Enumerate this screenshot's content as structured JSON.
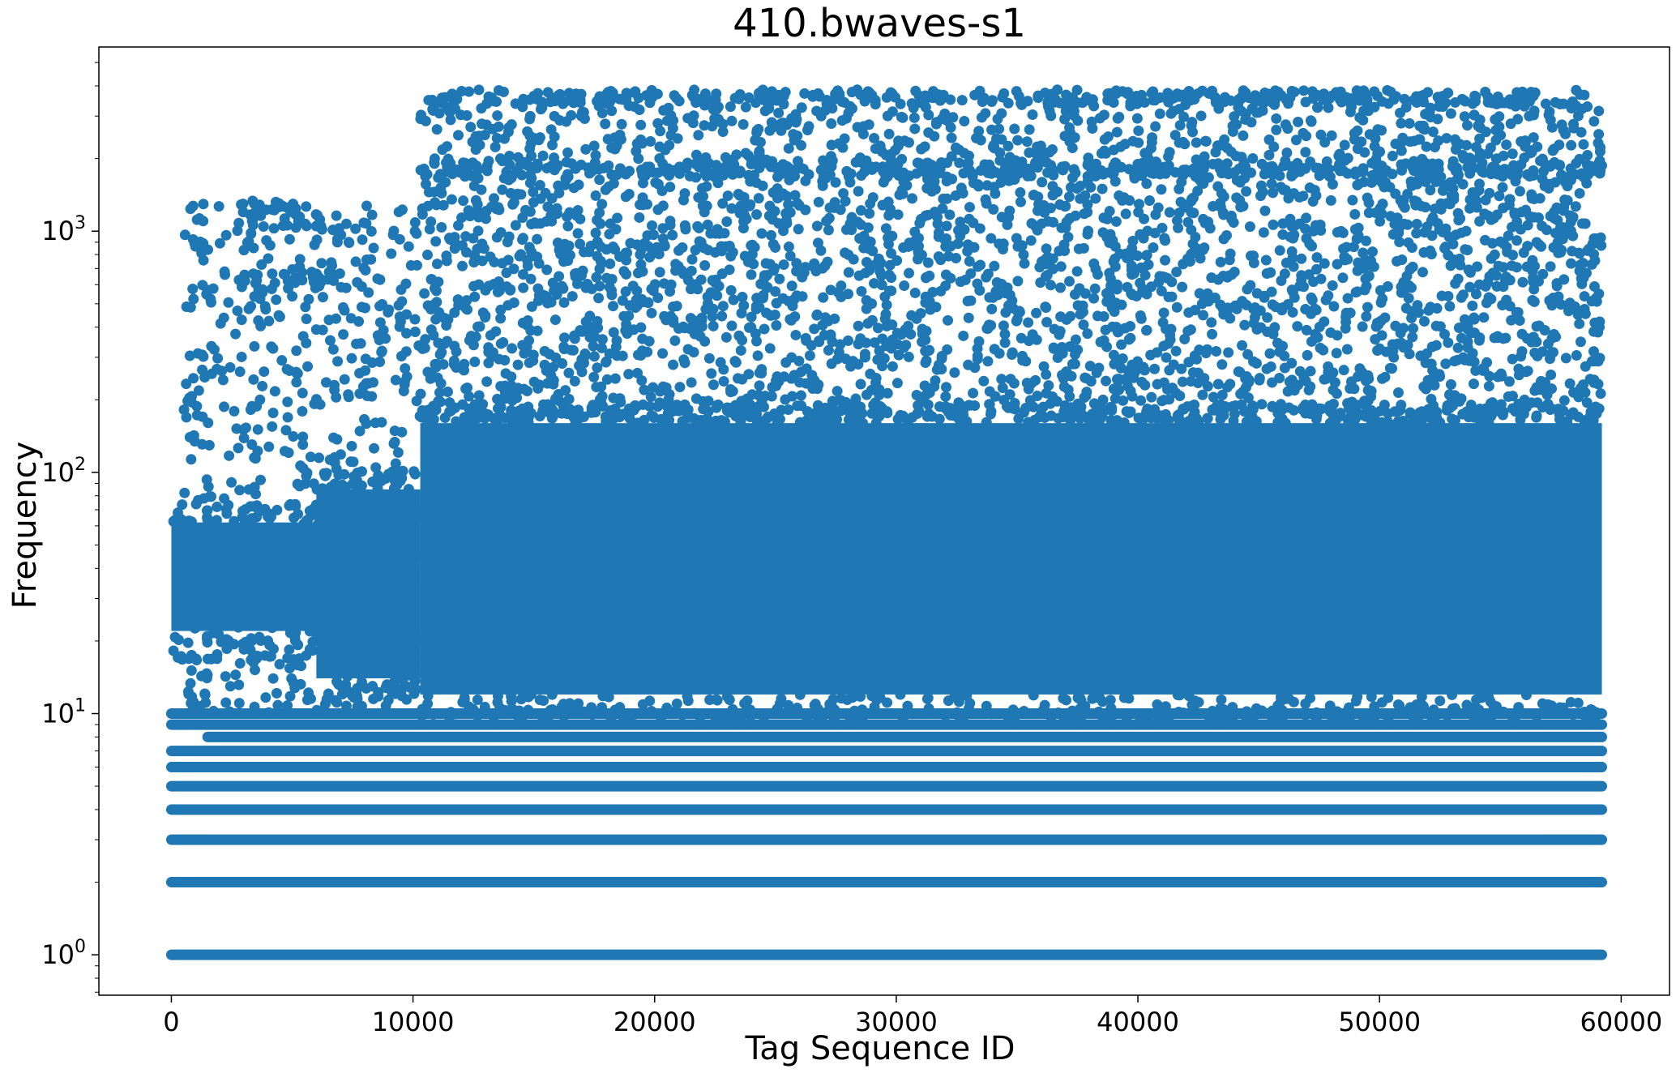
{
  "chart_data": {
    "type": "scatter",
    "title": "410.bwaves-s1",
    "xlabel": "Tag Sequence ID",
    "ylabel": "Frequency",
    "xlim": [
      -3000,
      62000
    ],
    "ylim": [
      0.68,
      5800
    ],
    "yscale": "log",
    "grid": false,
    "legend": "none",
    "marker_color": "#1f77b4",
    "x_ticks": [
      {
        "value": 0,
        "label": "0"
      },
      {
        "value": 10000,
        "label": "10000"
      },
      {
        "value": 20000,
        "label": "20000"
      },
      {
        "value": 30000,
        "label": "30000"
      },
      {
        "value": 40000,
        "label": "40000"
      },
      {
        "value": 50000,
        "label": "50000"
      },
      {
        "value": 60000,
        "label": "60000"
      }
    ],
    "y_ticks": [
      {
        "value": 1,
        "base": "10",
        "exp": "0"
      },
      {
        "value": 10,
        "base": "10",
        "exp": "1"
      },
      {
        "value": 100,
        "base": "10",
        "exp": "2"
      },
      {
        "value": 1000,
        "base": "10",
        "exp": "3"
      }
    ],
    "x_range_of_data": [
      0,
      59200
    ],
    "bands": [
      {
        "y": 1,
        "x_from": 0,
        "x_to": 59200
      },
      {
        "y": 2,
        "x_from": 0,
        "x_to": 59200
      },
      {
        "y": 3,
        "x_from": 0,
        "x_to": 59200
      },
      {
        "y": 4,
        "x_from": 0,
        "x_to": 59200
      },
      {
        "y": 5,
        "x_from": 0,
        "x_to": 59200
      },
      {
        "y": 6,
        "x_from": 0,
        "x_to": 59200
      },
      {
        "y": 7,
        "x_from": 0,
        "x_to": 59200
      },
      {
        "y": 8,
        "x_from": 1500,
        "x_to": 59200
      },
      {
        "y": 9,
        "x_from": 0,
        "x_to": 59200
      },
      {
        "y": 10,
        "x_from": 0,
        "x_to": 59200
      }
    ],
    "dense_regions": [
      {
        "x_from": 0,
        "x_to": 6500,
        "y_from": 22,
        "y_to": 62
      },
      {
        "x_from": 6000,
        "x_to": 10300,
        "y_from": 14,
        "y_to": 85
      },
      {
        "x_from": 10300,
        "x_to": 59200,
        "y_from": 12,
        "y_to": 160
      }
    ],
    "upper_bands": [
      {
        "y": 1800,
        "x_from": 10300,
        "x_to": 59200
      },
      {
        "y": 3600,
        "x_from": 10300,
        "x_to": 58500
      },
      {
        "y": 1250,
        "x_from": 3200,
        "x_to": 6200
      },
      {
        "y": 1100,
        "x_from": 3200,
        "x_to": 6200
      },
      {
        "y": 650,
        "x_from": 2000,
        "x_to": 7000
      }
    ],
    "scatter_regions": [
      {
        "x_from": 500,
        "x_to": 10300,
        "y_from": 10,
        "y_to": 1300
      },
      {
        "x_from": 10300,
        "x_to": 59200,
        "y_from": 160,
        "y_to": 3600
      }
    ]
  }
}
